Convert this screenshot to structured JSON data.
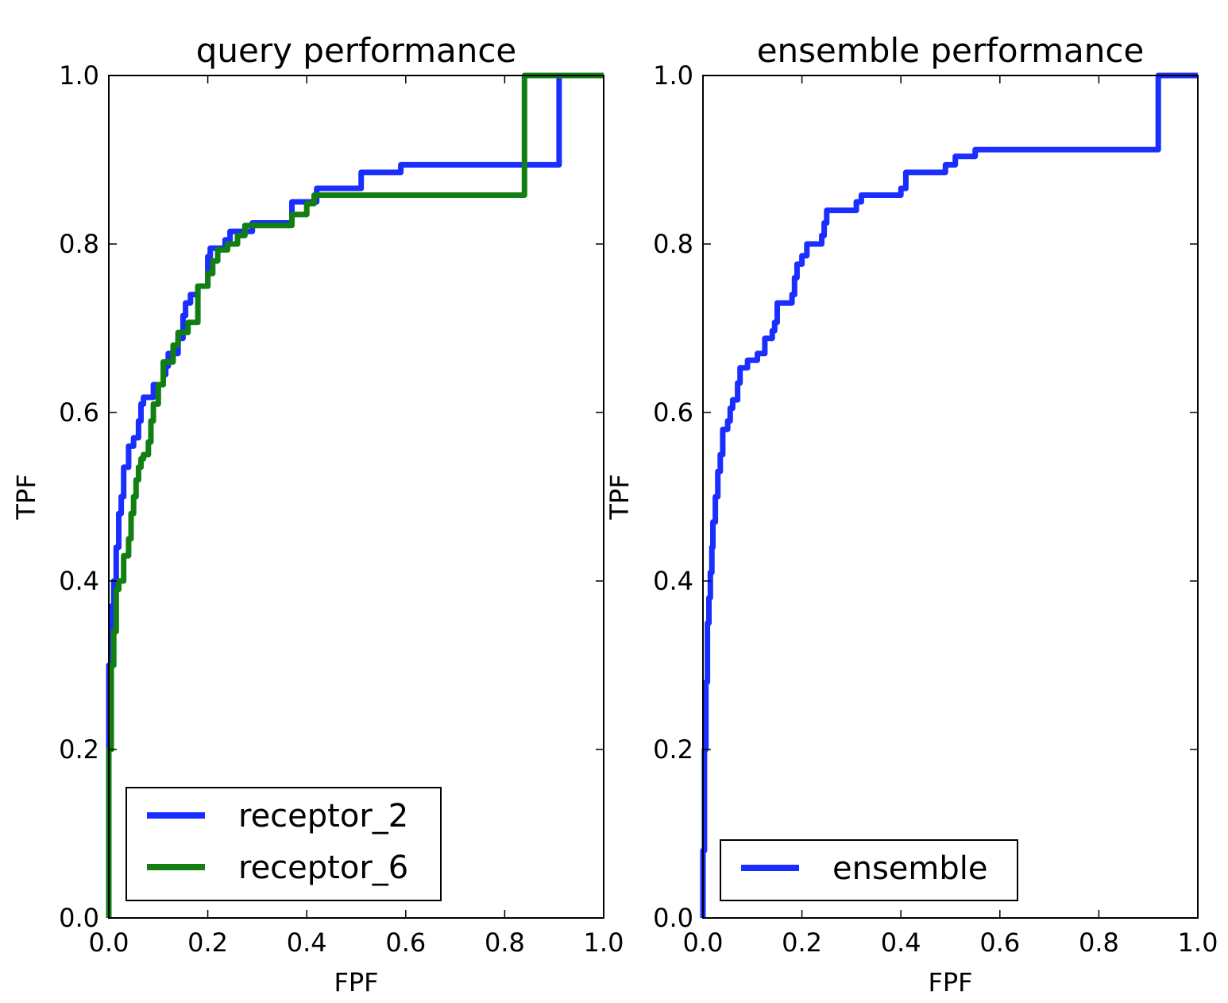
{
  "chart_data": [
    {
      "type": "line",
      "title": "query performance",
      "xlabel": "FPF",
      "ylabel": "TPF",
      "xlim": [
        0.0,
        1.0
      ],
      "ylim": [
        0.0,
        1.0
      ],
      "xticks": [
        "0.0",
        "0.2",
        "0.4",
        "0.6",
        "0.8",
        "1.0"
      ],
      "yticks": [
        "0.0",
        "0.2",
        "0.4",
        "0.6",
        "0.8",
        "1.0"
      ],
      "grid": false,
      "legend_position": "lower-left",
      "series": [
        {
          "name": "receptor_2",
          "color": "#1a2eff",
          "x": [
            0.0,
            0.0,
            0.005,
            0.005,
            0.01,
            0.01,
            0.015,
            0.015,
            0.02,
            0.02,
            0.025,
            0.025,
            0.03,
            0.03,
            0.04,
            0.04,
            0.05,
            0.05,
            0.06,
            0.06,
            0.065,
            0.065,
            0.07,
            0.07,
            0.09,
            0.09,
            0.11,
            0.11,
            0.115,
            0.115,
            0.12,
            0.12,
            0.14,
            0.14,
            0.15,
            0.15,
            0.155,
            0.155,
            0.165,
            0.165,
            0.18,
            0.18,
            0.2,
            0.2,
            0.205,
            0.205,
            0.215,
            0.215,
            0.235,
            0.235,
            0.245,
            0.245,
            0.29,
            0.29,
            0.37,
            0.37,
            0.42,
            0.42,
            0.51,
            0.51,
            0.59,
            0.59,
            0.91,
            0.91,
            1.0
          ],
          "y": [
            0.0,
            0.3,
            0.3,
            0.37,
            0.37,
            0.4,
            0.4,
            0.44,
            0.44,
            0.48,
            0.48,
            0.5,
            0.5,
            0.535,
            0.535,
            0.56,
            0.56,
            0.57,
            0.57,
            0.59,
            0.59,
            0.61,
            0.61,
            0.618,
            0.618,
            0.633,
            0.633,
            0.645,
            0.645,
            0.655,
            0.655,
            0.67,
            0.67,
            0.688,
            0.688,
            0.715,
            0.715,
            0.73,
            0.73,
            0.74,
            0.74,
            0.75,
            0.75,
            0.785,
            0.785,
            0.795,
            0.795,
            0.795,
            0.795,
            0.805,
            0.805,
            0.815,
            0.815,
            0.825,
            0.825,
            0.85,
            0.85,
            0.866,
            0.866,
            0.885,
            0.885,
            0.894,
            0.894,
            1.0,
            1.0
          ]
        },
        {
          "name": "receptor_6",
          "color": "#127f12",
          "x": [
            0.0,
            0.0,
            0.005,
            0.005,
            0.01,
            0.01,
            0.015,
            0.015,
            0.02,
            0.02,
            0.03,
            0.03,
            0.04,
            0.04,
            0.045,
            0.045,
            0.05,
            0.05,
            0.055,
            0.055,
            0.06,
            0.06,
            0.065,
            0.065,
            0.07,
            0.07,
            0.08,
            0.08,
            0.085,
            0.085,
            0.09,
            0.09,
            0.1,
            0.1,
            0.11,
            0.11,
            0.13,
            0.13,
            0.14,
            0.14,
            0.16,
            0.16,
            0.18,
            0.18,
            0.2,
            0.2,
            0.21,
            0.21,
            0.22,
            0.22,
            0.24,
            0.24,
            0.26,
            0.26,
            0.275,
            0.275,
            0.285,
            0.285,
            0.37,
            0.37,
            0.4,
            0.4,
            0.415,
            0.415,
            0.43,
            0.43,
            0.84,
            0.84,
            1.0
          ],
          "y": [
            0.0,
            0.2,
            0.2,
            0.3,
            0.3,
            0.34,
            0.34,
            0.39,
            0.39,
            0.4,
            0.4,
            0.43,
            0.43,
            0.45,
            0.45,
            0.48,
            0.48,
            0.5,
            0.5,
            0.52,
            0.52,
            0.535,
            0.535,
            0.545,
            0.545,
            0.55,
            0.55,
            0.565,
            0.565,
            0.59,
            0.59,
            0.61,
            0.61,
            0.633,
            0.633,
            0.66,
            0.66,
            0.68,
            0.68,
            0.695,
            0.695,
            0.707,
            0.707,
            0.75,
            0.75,
            0.765,
            0.765,
            0.78,
            0.78,
            0.793,
            0.793,
            0.8,
            0.8,
            0.81,
            0.81,
            0.822,
            0.822,
            0.822,
            0.822,
            0.835,
            0.835,
            0.848,
            0.848,
            0.858,
            0.858,
            0.858,
            0.858,
            1.0,
            1.0
          ]
        }
      ]
    },
    {
      "type": "line",
      "title": "ensemble performance",
      "xlabel": "FPF",
      "ylabel": "TPF",
      "xlim": [
        0.0,
        1.0
      ],
      "ylim": [
        0.0,
        1.0
      ],
      "xticks": [
        "0.0",
        "0.2",
        "0.4",
        "0.6",
        "0.8",
        "1.0"
      ],
      "yticks": [
        "0.0",
        "0.2",
        "0.4",
        "0.6",
        "0.8",
        "1.0"
      ],
      "grid": false,
      "legend_position": "lower-left",
      "series": [
        {
          "name": "ensemble",
          "color": "#1a2eff",
          "x": [
            0.0,
            0.0,
            0.003,
            0.003,
            0.006,
            0.006,
            0.009,
            0.009,
            0.012,
            0.012,
            0.015,
            0.015,
            0.018,
            0.018,
            0.02,
            0.02,
            0.025,
            0.025,
            0.03,
            0.03,
            0.035,
            0.035,
            0.04,
            0.04,
            0.05,
            0.05,
            0.055,
            0.055,
            0.06,
            0.06,
            0.07,
            0.07,
            0.075,
            0.075,
            0.09,
            0.09,
            0.11,
            0.11,
            0.125,
            0.125,
            0.14,
            0.14,
            0.145,
            0.145,
            0.15,
            0.15,
            0.18,
            0.18,
            0.185,
            0.185,
            0.19,
            0.19,
            0.2,
            0.2,
            0.21,
            0.21,
            0.24,
            0.24,
            0.245,
            0.245,
            0.25,
            0.25,
            0.31,
            0.31,
            0.32,
            0.32,
            0.4,
            0.4,
            0.41,
            0.41,
            0.49,
            0.49,
            0.51,
            0.51,
            0.55,
            0.55,
            0.92,
            0.92,
            1.0
          ],
          "y": [
            0.0,
            0.08,
            0.08,
            0.2,
            0.2,
            0.28,
            0.28,
            0.35,
            0.35,
            0.38,
            0.38,
            0.41,
            0.41,
            0.44,
            0.44,
            0.47,
            0.47,
            0.5,
            0.5,
            0.53,
            0.53,
            0.55,
            0.55,
            0.58,
            0.58,
            0.59,
            0.59,
            0.605,
            0.605,
            0.615,
            0.615,
            0.635,
            0.635,
            0.653,
            0.653,
            0.662,
            0.662,
            0.67,
            0.67,
            0.688,
            0.688,
            0.697,
            0.697,
            0.707,
            0.707,
            0.73,
            0.73,
            0.74,
            0.74,
            0.76,
            0.76,
            0.776,
            0.776,
            0.786,
            0.786,
            0.8,
            0.8,
            0.81,
            0.81,
            0.825,
            0.825,
            0.84,
            0.84,
            0.85,
            0.85,
            0.858,
            0.858,
            0.866,
            0.866,
            0.885,
            0.885,
            0.894,
            0.894,
            0.904,
            0.904,
            0.912,
            0.912,
            1.0,
            1.0
          ]
        }
      ]
    }
  ]
}
